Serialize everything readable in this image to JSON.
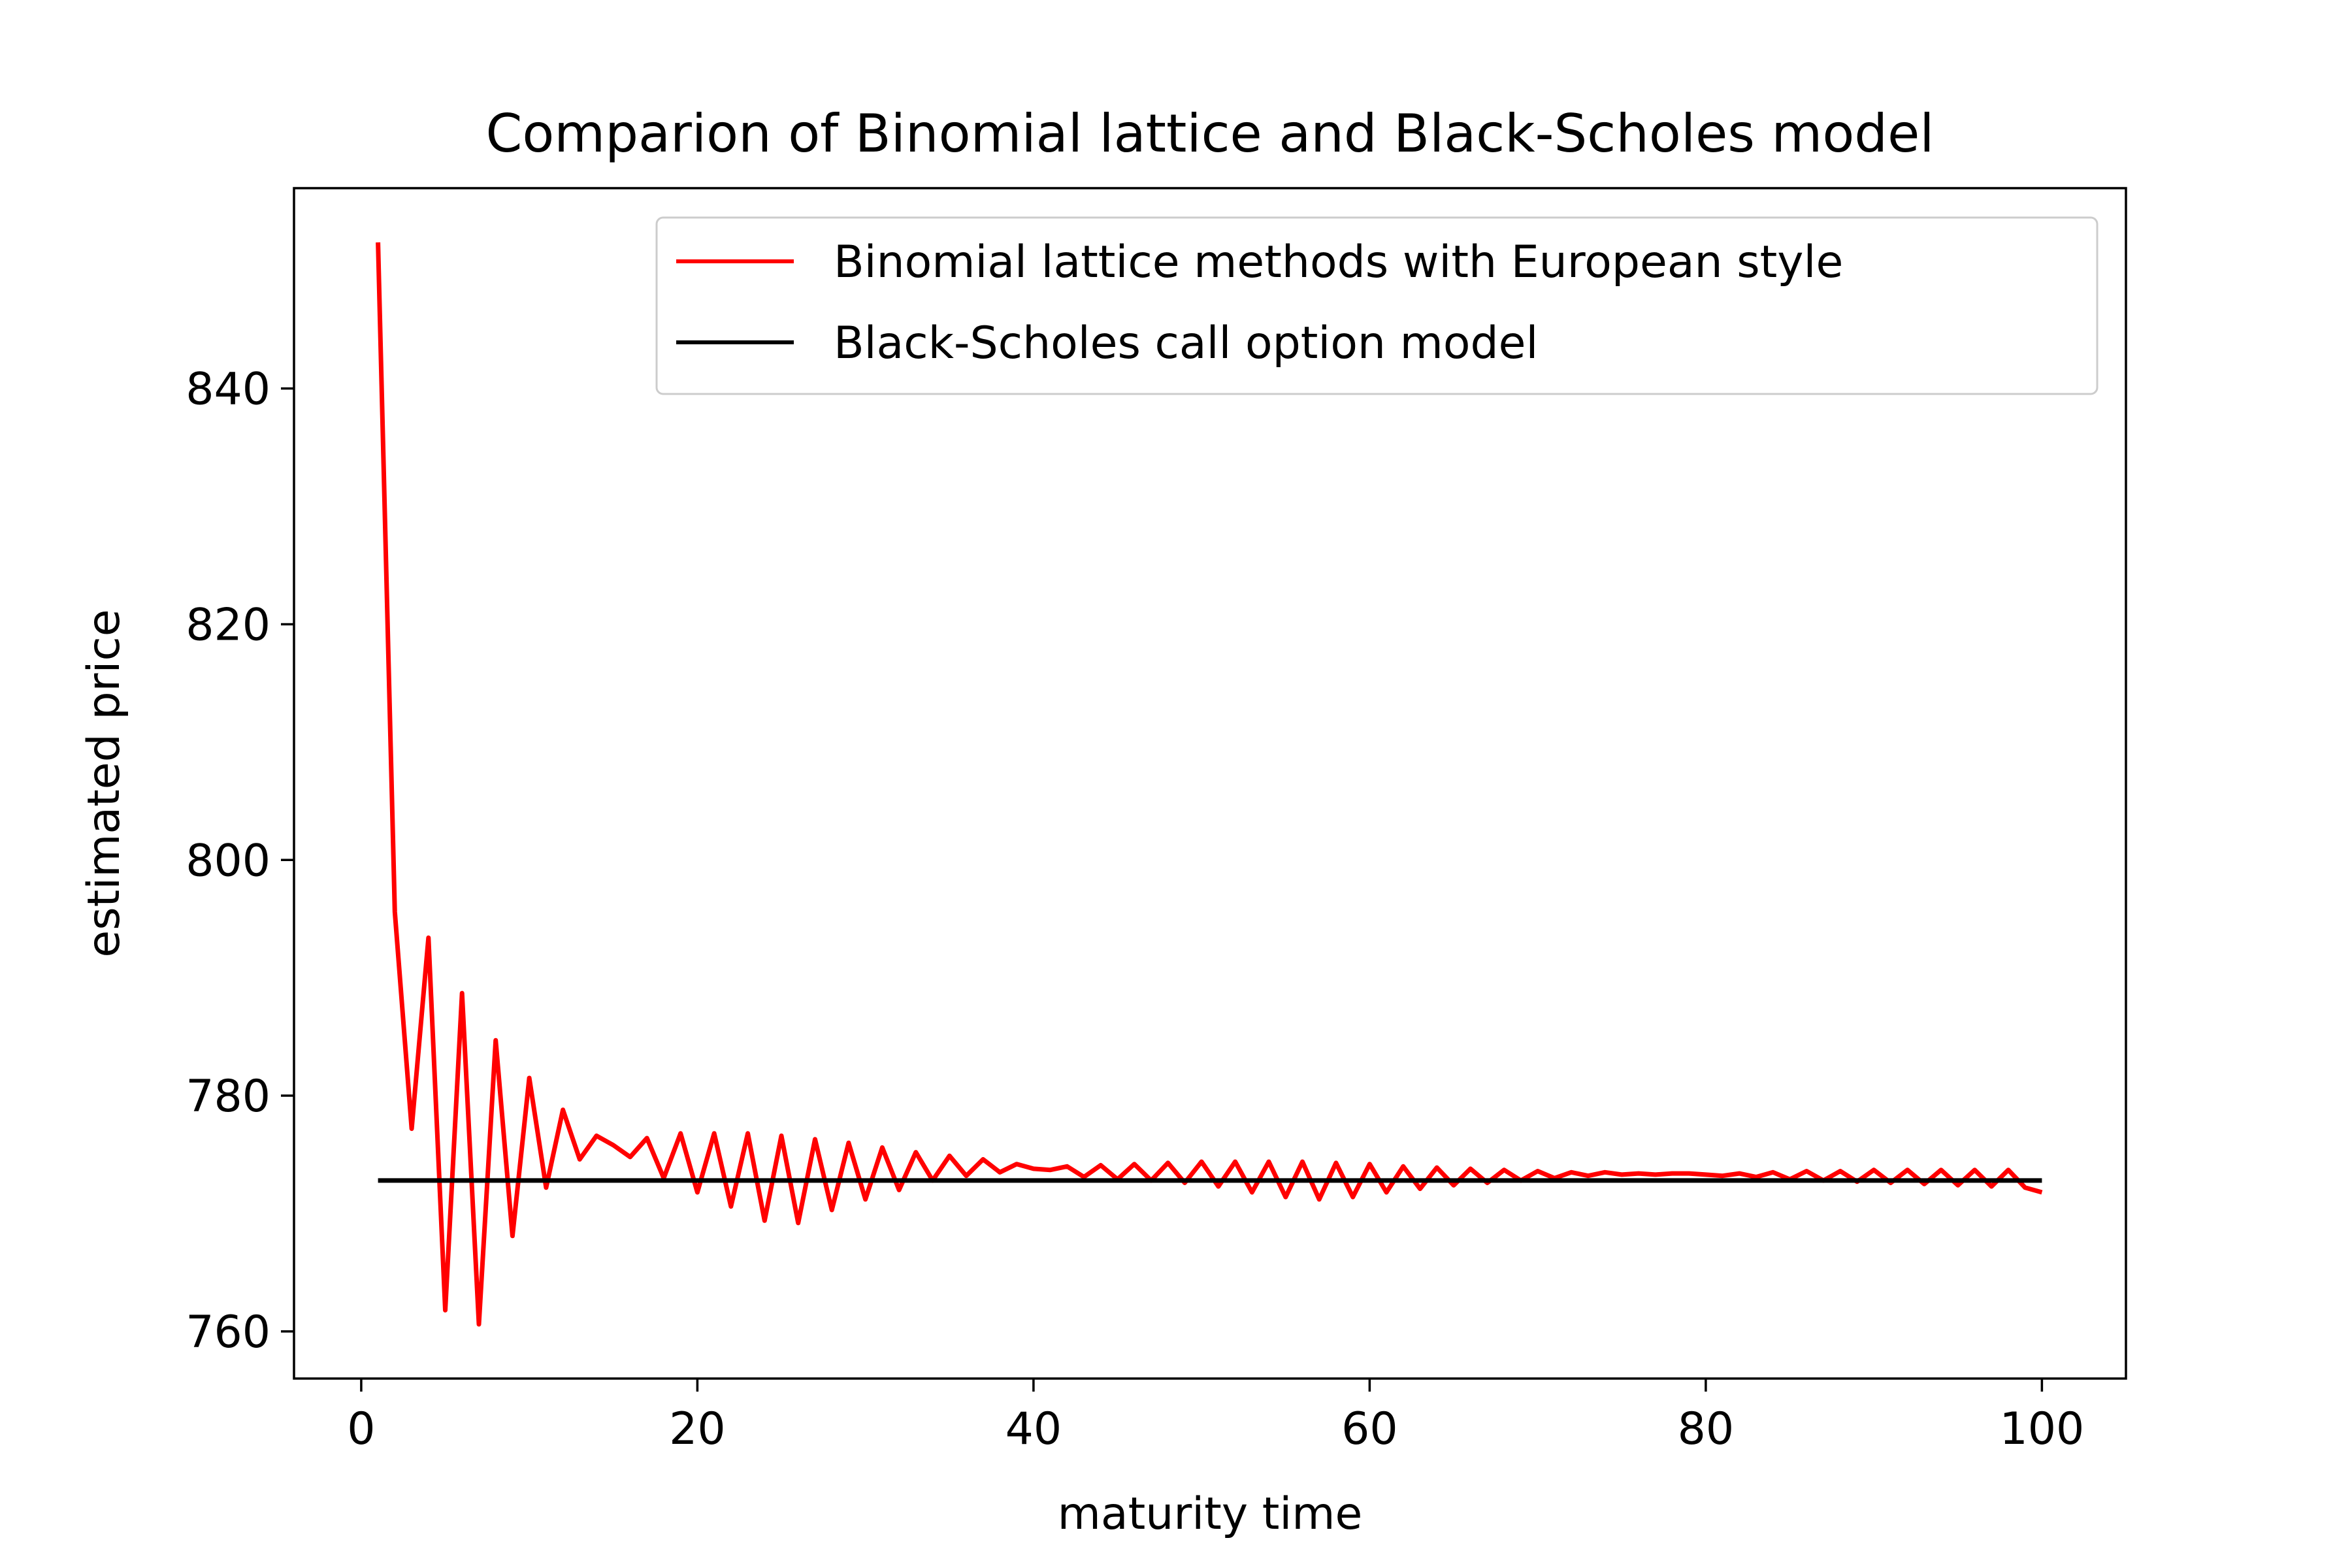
{
  "chart_data": {
    "type": "line",
    "title": "Comparion of Binomial lattice and Black-Scholes model",
    "xlabel": "maturity time",
    "ylabel": "estimated price",
    "xlim": [
      -4.0,
      105.0
    ],
    "ylim": [
      756.0,
      857.0
    ],
    "xticks": [
      0,
      20,
      40,
      60,
      80,
      100
    ],
    "yticks": [
      760,
      780,
      800,
      820,
      840
    ],
    "grid": false,
    "legend_position": "top-right",
    "series": [
      {
        "name": "Binomial lattice methods with European style",
        "color": "#ff0000",
        "x": [
          1,
          2,
          3,
          4,
          5,
          6,
          7,
          8,
          9,
          10,
          11,
          12,
          13,
          14,
          15,
          16,
          17,
          18,
          19,
          20,
          21,
          22,
          23,
          24,
          25,
          26,
          27,
          28,
          29,
          30,
          31,
          32,
          33,
          34,
          35,
          36,
          37,
          38,
          39,
          40,
          41,
          42,
          43,
          44,
          45,
          46,
          47,
          48,
          49,
          50,
          51,
          52,
          53,
          54,
          55,
          56,
          57,
          58,
          59,
          60,
          61,
          62,
          63,
          64,
          65,
          66,
          67,
          68,
          69,
          70,
          71,
          72,
          73,
          74,
          75,
          76,
          77,
          78,
          79,
          80,
          81,
          82,
          83,
          84,
          85,
          86,
          87,
          88,
          89,
          90,
          91,
          92,
          93,
          94,
          95,
          96,
          97,
          98,
          99,
          100
        ],
        "y": [
          852.4,
          795.6,
          777.2,
          793.4,
          761.8,
          788.7,
          760.6,
          784.7,
          768.1,
          781.5,
          772.2,
          778.8,
          774.6,
          776.6,
          775.8,
          774.8,
          776.4,
          773.0,
          776.8,
          771.8,
          776.8,
          770.6,
          776.8,
          769.4,
          776.6,
          769.2,
          776.3,
          770.3,
          776.0,
          771.2,
          775.6,
          772.0,
          775.2,
          772.8,
          774.9,
          773.2,
          774.6,
          773.5,
          774.2,
          773.8,
          773.7,
          774.0,
          773.1,
          774.1,
          772.9,
          774.2,
          772.8,
          774.3,
          772.6,
          774.4,
          772.3,
          774.4,
          771.8,
          774.4,
          771.4,
          774.4,
          771.2,
          774.3,
          771.4,
          774.2,
          771.8,
          774.0,
          772.1,
          773.9,
          772.4,
          773.8,
          772.6,
          773.7,
          772.8,
          773.6,
          773.0,
          773.5,
          773.2,
          773.5,
          773.3,
          773.4,
          773.3,
          773.4,
          773.4,
          773.3,
          773.2,
          773.4,
          773.1,
          773.5,
          772.9,
          773.6,
          772.8,
          773.6,
          772.7,
          773.7,
          772.6,
          773.7,
          772.5,
          773.7,
          772.4,
          773.7,
          772.3,
          773.7,
          772.2,
          771.8
        ]
      },
      {
        "name": "Black-Scholes call option model",
        "color": "#000000",
        "x": [
          1,
          100
        ],
        "y": [
          772.8,
          772.8
        ]
      }
    ]
  }
}
